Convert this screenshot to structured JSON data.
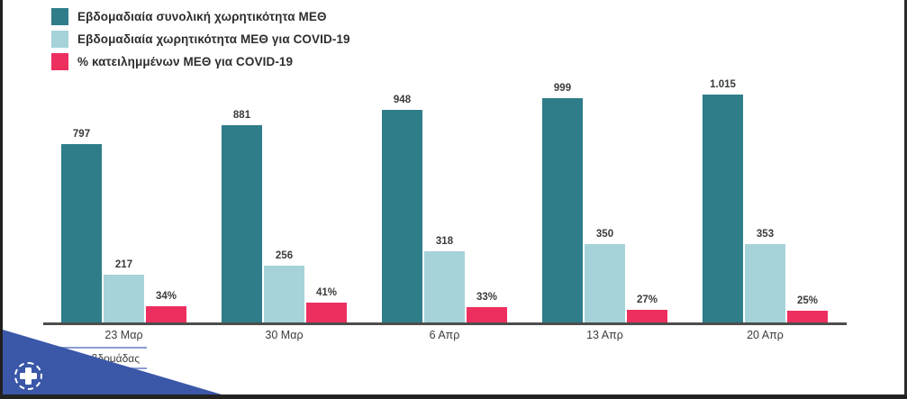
{
  "chart_data": {
    "type": "bar",
    "categories": [
      "23 Μαρ",
      "30 Μαρ",
      "6 Απρ",
      "13 Απρ",
      "20 Απρ"
    ],
    "series": [
      {
        "name": "Εβδομαδιαία συνολική χωρητικότητα ΜΕΘ",
        "color": "#2e7d88",
        "values": [
          797,
          881,
          948,
          999,
          1015
        ],
        "labels": [
          "797",
          "881",
          "948",
          "999",
          "1.015"
        ]
      },
      {
        "name": "Εβδομαδιαία χωρητικότητα ΜΕΘ για COVID-19",
        "color": "#a5d3d9",
        "values": [
          217,
          256,
          318,
          350,
          353
        ],
        "labels": [
          "217",
          "256",
          "318",
          "350",
          "353"
        ]
      },
      {
        "name": "% κατειλημμένων ΜΕΘ για COVID-19",
        "color": "#ed2f5f",
        "values": [
          34,
          41,
          33,
          27,
          25
        ],
        "labels": [
          "34%",
          "41%",
          "33%",
          "27%",
          "25%"
        ],
        "unit": "%",
        "axis": "secondary"
      }
    ],
    "title": "",
    "xlabel": "Αρχή εβδομάδας",
    "ylabel": "",
    "ylim_primary": [
      0,
      1100
    ],
    "ylim_secondary_percent": [
      0,
      100
    ],
    "y_axis_visible": false,
    "grid": false,
    "value_labels_shown": true,
    "legend_position": "top-left"
  },
  "footer": {
    "week_axis_title": "Αρχή εβδομάδας"
  },
  "logo": {
    "name": "greek-government-emblem",
    "triangle_color": "#3a57a8"
  },
  "colors": {
    "axis_line": "#4d4d4d",
    "label_text": "#3b3b3b",
    "frame": "#1f1f1f"
  }
}
